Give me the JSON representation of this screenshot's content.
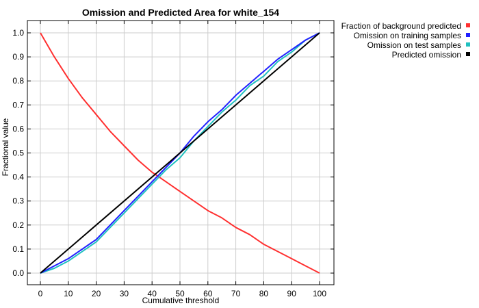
{
  "chart_data": {
    "type": "line",
    "title": "Omission and Predicted Area for white_154",
    "xlabel": "Cumulative threshold",
    "ylabel": "Fractional value",
    "xlim": [
      0,
      100
    ],
    "ylim": [
      0,
      1
    ],
    "xticks": [
      "0",
      "10",
      "20",
      "30",
      "40",
      "50",
      "60",
      "70",
      "80",
      "90",
      "100"
    ],
    "yticks": [
      "0.0",
      "0.1",
      "0.2",
      "0.3",
      "0.4",
      "0.5",
      "0.6",
      "0.7",
      "0.8",
      "0.9",
      "1.0"
    ],
    "grid": true,
    "legend_position": "top-right outside",
    "series": [
      {
        "name": "Fraction of background predicted",
        "color": "#ff3030",
        "x": [
          0,
          5,
          10,
          15,
          20,
          25,
          30,
          35,
          40,
          45,
          50,
          55,
          60,
          65,
          70,
          75,
          80,
          85,
          90,
          95,
          100
        ],
        "y": [
          1.0,
          0.9,
          0.81,
          0.73,
          0.66,
          0.59,
          0.53,
          0.47,
          0.42,
          0.38,
          0.34,
          0.3,
          0.26,
          0.23,
          0.19,
          0.16,
          0.12,
          0.09,
          0.06,
          0.03,
          0.0
        ]
      },
      {
        "name": "Omission on training samples",
        "color": "#2020ff",
        "x": [
          0,
          5,
          10,
          15,
          20,
          25,
          30,
          35,
          40,
          45,
          50,
          55,
          60,
          65,
          70,
          75,
          80,
          85,
          90,
          95,
          100
        ],
        "y": [
          0.0,
          0.03,
          0.06,
          0.1,
          0.14,
          0.2,
          0.26,
          0.32,
          0.38,
          0.44,
          0.5,
          0.57,
          0.63,
          0.68,
          0.74,
          0.79,
          0.84,
          0.89,
          0.93,
          0.97,
          1.0
        ]
      },
      {
        "name": "Omission on test samples",
        "color": "#20c0c0",
        "x": [
          0,
          5,
          10,
          15,
          20,
          25,
          30,
          35,
          40,
          45,
          50,
          55,
          60,
          65,
          70,
          75,
          80,
          85,
          90,
          95,
          100
        ],
        "y": [
          0.0,
          0.02,
          0.05,
          0.09,
          0.13,
          0.19,
          0.25,
          0.31,
          0.37,
          0.43,
          0.48,
          0.55,
          0.61,
          0.67,
          0.72,
          0.78,
          0.82,
          0.88,
          0.92,
          0.97,
          1.0
        ]
      },
      {
        "name": "Predicted omission",
        "color": "#000000",
        "x": [
          0,
          100
        ],
        "y": [
          0.0,
          1.0
        ]
      }
    ]
  }
}
